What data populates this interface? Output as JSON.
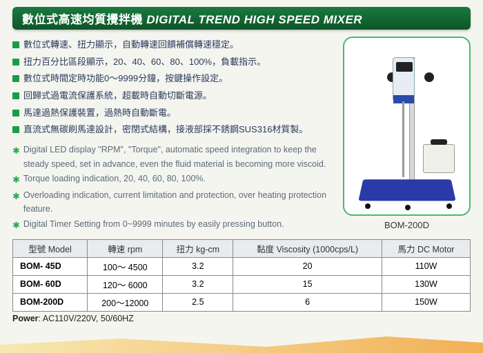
{
  "title": {
    "zh": "數位式高速均質攪拌機",
    "en": "DIGITAL TREND HIGH SPEED MIXER"
  },
  "bullets_zh": [
    "數位式轉速、扭力顯示，自動轉速回饋補償轉速穩定。",
    "扭力百分比區段顯示，20、40、60、80、100%，負載指示。",
    "數位式時間定時功能0～9999分鐘，按鍵操作設定。",
    "回歸式過電流保護系統，超載時自動切斷電源。",
    "馬達過熱保護裝置，過熱時自動斷電。",
    "直流式無碳刷馬達設計，密閉式結構，接液部採不銹鋼SUS316材質製。"
  ],
  "bullets_en": [
    "Digital LED display \"RPM\", \"Torque\", automatic speed integration to keep the steady speed, set in advance, even the fluid material is becoming more viscoid.",
    "Torque loading indication, 20, 40, 60, 80, 100%.",
    "Overloading indication, current limitation and protection, over heating protection feature.",
    "Digital Timer Setting from 0~9999 minutes by easily pressing button."
  ],
  "photo_caption": "BOM-200D",
  "table": {
    "headers": [
      "型號 Model",
      "轉速 rpm",
      "扭力 kg-cm",
      "黏度 Viscosity (1000cps/L)",
      "馬力 DC Motor"
    ],
    "rows": [
      [
        "BOM-  45D",
        "100～ 4500",
        "3.2",
        "20",
        "110W"
      ],
      [
        "BOM-  60D",
        "120～ 6000",
        "3.2",
        "15",
        "130W"
      ],
      [
        "BOM-200D",
        "200～12000",
        "2.5",
        "6",
        "150W"
      ]
    ]
  },
  "power": {
    "label": "Power",
    "value": ": AC110V/220V, 50/60HZ"
  },
  "colors": {
    "title_bg_top": "#1a7a3e",
    "title_bg_bot": "#0d5528",
    "bullet_sq": "#1a9d4a",
    "star": "#2aa84a",
    "photo_border": "#4ab96a",
    "base": "#2a3aa8"
  }
}
